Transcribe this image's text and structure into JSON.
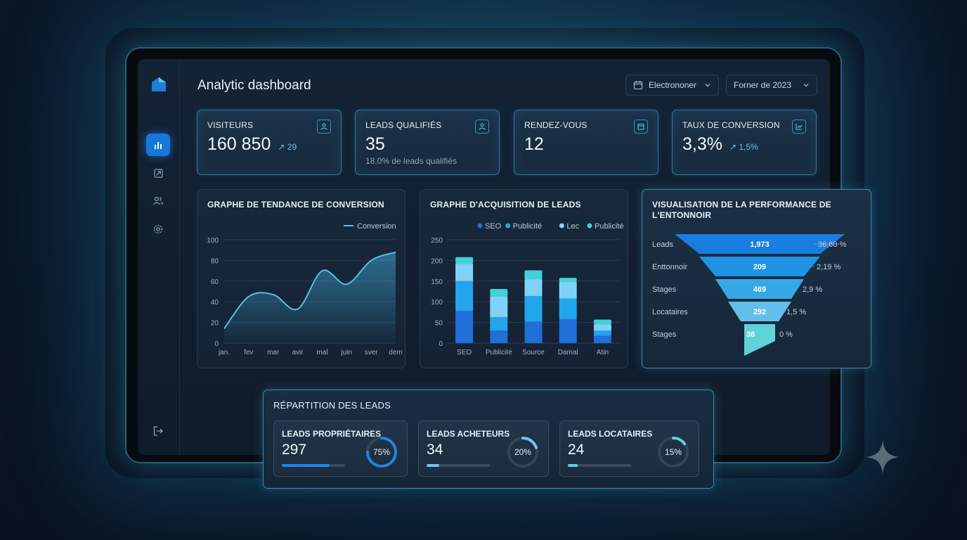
{
  "app": {
    "title": "Analytic dashboard",
    "filters": [
      {
        "label": "Electrononer",
        "icon": "calendar-icon"
      },
      {
        "label": "Forner de 2023",
        "icon": "chevron-down-icon"
      }
    ],
    "sidebar": [
      {
        "icon": "bar-chart-icon",
        "active": true
      },
      {
        "icon": "trend-icon",
        "active": false
      },
      {
        "icon": "users-icon",
        "active": false
      },
      {
        "icon": "gear-icon",
        "active": false
      },
      {
        "icon": "logout-icon",
        "active": false
      }
    ]
  },
  "kpis": [
    {
      "label": "VISITEURS",
      "value": "160 850",
      "trend": "↗ 29",
      "sub": "",
      "icon": "user-icon"
    },
    {
      "label": "LEADS QUALIFIÉS",
      "value": "35",
      "trend": "",
      "sub": "18,0% de leads qualifiés",
      "icon": "user-icon"
    },
    {
      "label": "RENDEZ-VOUS",
      "value": "12",
      "trend": "",
      "sub": "",
      "icon": "calendar-icon"
    },
    {
      "label": "TAUX DE CONVERSION",
      "value": "3,3%",
      "trend": "↗ 1,5%",
      "sub": "",
      "icon": "chart-icon"
    }
  ],
  "chart_data": [
    {
      "type": "area",
      "title": "GRAPHE DE TENDANCE DE CONVERSION",
      "categories": [
        "jan.",
        "fev",
        "mar",
        "avir",
        "mal",
        "juin",
        "sver",
        "dem"
      ],
      "series": [
        {
          "name": "Conversion",
          "values": [
            14,
            45,
            47,
            33,
            70,
            57,
            80,
            88
          ]
        }
      ],
      "ylim": [
        0,
        100
      ],
      "yticks": [
        0,
        20,
        40,
        60,
        80,
        100
      ],
      "grid": true,
      "legend": "top-right"
    },
    {
      "type": "bar",
      "title": "GRAPHE D'ACQUISITION DE LEADS",
      "categories": [
        "SEO",
        "Publicité",
        "Source",
        "Damal",
        "Atin"
      ],
      "series": [
        {
          "name": "SEO",
          "values": [
            78,
            30,
            52,
            58,
            18
          ],
          "color": "#1f6fd6"
        },
        {
          "name": "Publicité",
          "values": [
            72,
            33,
            62,
            50,
            12
          ],
          "color": "#23a5ee"
        },
        {
          "name": "Lec",
          "values": [
            42,
            50,
            40,
            40,
            15
          ],
          "color": "#7fd2f6"
        },
        {
          "name": "Publicité",
          "values": [
            16,
            18,
            22,
            10,
            12
          ],
          "color": "#42d1d8"
        }
      ],
      "ylim": [
        0,
        250
      ],
      "yticks": [
        0,
        50,
        100,
        150,
        200,
        250
      ],
      "grid": true,
      "legend": "top"
    }
  ],
  "funnel": {
    "title": "VISUALISATION DE LA PERFORMANCE DE L'ENTONNOIR",
    "stages": [
      {
        "label": "Leads",
        "value": "1,973",
        "pct": "36,60 %",
        "color": "#1a7de0"
      },
      {
        "label": "Enttonnoir",
        "value": "209",
        "pct": "2,19 %",
        "color": "#1f92e4"
      },
      {
        "label": "Stages",
        "value": "469",
        "pct": "2,9 %",
        "color": "#35a9e8"
      },
      {
        "label": "Locataires",
        "value": "292",
        "pct": "1,5 %",
        "color": "#61bfea"
      },
      {
        "label": "Stages",
        "value": "36",
        "pct": "0 %",
        "color": "#5fd3d6"
      }
    ]
  },
  "leads_split": {
    "title": "RÉPARTITION DES LEADS",
    "cards": [
      {
        "label": "LEADS PROPRIÉTAIRES",
        "value": "297",
        "pct": "75%",
        "ratio": 0.75,
        "color": "#1e86e6"
      },
      {
        "label": "LEADS ACHETEURS",
        "value": "34",
        "pct": "20%",
        "ratio": 0.2,
        "color": "#6cc8ef"
      },
      {
        "label": "LEADS LOCATAIRES",
        "value": "24",
        "pct": "15%",
        "ratio": 0.15,
        "color": "#5fcfe0"
      }
    ]
  }
}
